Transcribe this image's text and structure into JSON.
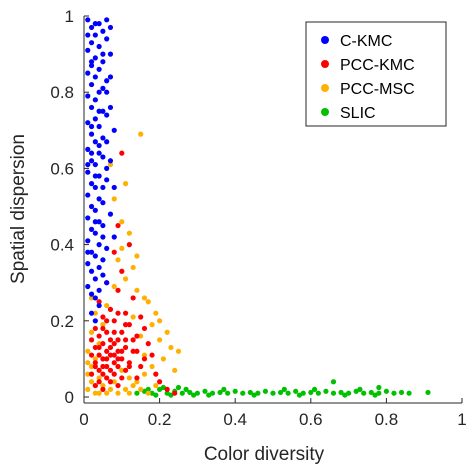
{
  "chart_data": {
    "type": "scatter",
    "title": "",
    "xlabel": "Color diversity",
    "ylabel": "Spatial dispersion",
    "xlim": [
      0,
      1
    ],
    "ylim": [
      0,
      1
    ],
    "xticks": [
      0,
      0.2,
      0.4,
      0.6,
      0.8,
      1
    ],
    "yticks": [
      0,
      0.2,
      0.4,
      0.6,
      0.8,
      1
    ],
    "xtick_labels": [
      "0",
      "0.2",
      "0.4",
      "0.6",
      "0.8",
      "1"
    ],
    "ytick_labels": [
      "0",
      "0.2",
      "0.4",
      "0.6",
      "0.8",
      "1"
    ],
    "grid": false,
    "legend_position": "top-right",
    "series": [
      {
        "name": "C-KMC",
        "color": "#0000ff",
        "points": [
          [
            0.01,
            0.99
          ],
          [
            0.02,
            0.97
          ],
          [
            0.03,
            0.95
          ],
          [
            0.04,
            0.98
          ],
          [
            0.02,
            0.93
          ],
          [
            0.05,
            0.96
          ],
          [
            0.01,
            0.91
          ],
          [
            0.03,
            0.89
          ],
          [
            0.04,
            0.92
          ],
          [
            0.06,
            0.94
          ],
          [
            0.02,
            0.87
          ],
          [
            0.05,
            0.88
          ],
          [
            0.01,
            0.85
          ],
          [
            0.03,
            0.84
          ],
          [
            0.04,
            0.86
          ],
          [
            0.02,
            0.82
          ],
          [
            0.05,
            0.81
          ],
          [
            0.06,
            0.83
          ],
          [
            0.01,
            0.79
          ],
          [
            0.03,
            0.78
          ],
          [
            0.04,
            0.8
          ],
          [
            0.02,
            0.76
          ],
          [
            0.05,
            0.75
          ],
          [
            0.03,
            0.73
          ],
          [
            0.01,
            0.72
          ],
          [
            0.04,
            0.71
          ],
          [
            0.06,
            0.74
          ],
          [
            0.02,
            0.69
          ],
          [
            0.03,
            0.67
          ],
          [
            0.05,
            0.68
          ],
          [
            0.01,
            0.65
          ],
          [
            0.04,
            0.64
          ],
          [
            0.02,
            0.62
          ],
          [
            0.03,
            0.61
          ],
          [
            0.05,
            0.63
          ],
          [
            0.01,
            0.59
          ],
          [
            0.04,
            0.58
          ],
          [
            0.02,
            0.56
          ],
          [
            0.03,
            0.55
          ],
          [
            0.06,
            0.57
          ],
          [
            0.01,
            0.53
          ],
          [
            0.04,
            0.52
          ],
          [
            0.02,
            0.5
          ],
          [
            0.05,
            0.51
          ],
          [
            0.03,
            0.49
          ],
          [
            0.01,
            0.47
          ],
          [
            0.04,
            0.46
          ],
          [
            0.02,
            0.44
          ],
          [
            0.03,
            0.43
          ],
          [
            0.05,
            0.45
          ],
          [
            0.01,
            0.41
          ],
          [
            0.04,
            0.4
          ],
          [
            0.02,
            0.38
          ],
          [
            0.03,
            0.37
          ],
          [
            0.06,
            0.39
          ],
          [
            0.01,
            0.35
          ],
          [
            0.04,
            0.34
          ],
          [
            0.02,
            0.33
          ],
          [
            0.05,
            0.32
          ],
          [
            0.03,
            0.31
          ],
          [
            0.01,
            0.29
          ],
          [
            0.04,
            0.28
          ],
          [
            0.02,
            0.27
          ],
          [
            0.03,
            0.26
          ],
          [
            0.07,
            0.9
          ],
          [
            0.07,
            0.76
          ],
          [
            0.07,
            0.62
          ],
          [
            0.07,
            0.48
          ],
          [
            0.08,
            0.55
          ],
          [
            0.08,
            0.7
          ],
          [
            0.06,
            0.99
          ],
          [
            0.07,
            0.97
          ],
          [
            0.03,
            0.98
          ],
          [
            0.05,
            0.9
          ],
          [
            0.02,
            0.71
          ],
          [
            0.04,
            0.66
          ],
          [
            0.06,
            0.6
          ],
          [
            0.05,
            0.42
          ],
          [
            0.03,
            0.58
          ],
          [
            0.02,
            0.88
          ],
          [
            0.01,
            0.95
          ],
          [
            0.06,
            0.8
          ],
          [
            0.04,
            0.75
          ],
          [
            0.02,
            0.64
          ],
          [
            0.05,
            0.55
          ],
          [
            0.03,
            0.46
          ],
          [
            0.01,
            0.38
          ],
          [
            0.06,
            0.3
          ],
          [
            0.04,
            0.24
          ],
          [
            0.02,
            0.22
          ],
          [
            0.03,
            0.2
          ],
          [
            0.05,
            0.36
          ],
          [
            0.01,
            0.61
          ],
          [
            0.07,
            0.84
          ],
          [
            0.06,
            0.67
          ],
          [
            0.08,
            0.42
          ]
        ]
      },
      {
        "name": "PCC-KMC",
        "color": "#ff0000",
        "points": [
          [
            0.1,
            0.64
          ],
          [
            0.09,
            0.45
          ],
          [
            0.12,
            0.4
          ],
          [
            0.08,
            0.38
          ],
          [
            0.1,
            0.33
          ],
          [
            0.06,
            0.3
          ],
          [
            0.09,
            0.28
          ],
          [
            0.13,
            0.26
          ],
          [
            0.04,
            0.25
          ],
          [
            0.07,
            0.23
          ],
          [
            0.11,
            0.22
          ],
          [
            0.05,
            0.21
          ],
          [
            0.08,
            0.2
          ],
          [
            0.12,
            0.19
          ],
          [
            0.03,
            0.18
          ],
          [
            0.06,
            0.17
          ],
          [
            0.1,
            0.17
          ],
          [
            0.14,
            0.16
          ],
          [
            0.04,
            0.16
          ],
          [
            0.07,
            0.15
          ],
          [
            0.09,
            0.15
          ],
          [
            0.05,
            0.14
          ],
          [
            0.08,
            0.14
          ],
          [
            0.11,
            0.13
          ],
          [
            0.03,
            0.13
          ],
          [
            0.06,
            0.12
          ],
          [
            0.09,
            0.12
          ],
          [
            0.13,
            0.12
          ],
          [
            0.04,
            0.11
          ],
          [
            0.07,
            0.11
          ],
          [
            0.1,
            0.1
          ],
          [
            0.05,
            0.1
          ],
          [
            0.08,
            0.09
          ],
          [
            0.12,
            0.09
          ],
          [
            0.03,
            0.09
          ],
          [
            0.06,
            0.08
          ],
          [
            0.09,
            0.08
          ],
          [
            0.04,
            0.07
          ],
          [
            0.07,
            0.07
          ],
          [
            0.11,
            0.07
          ],
          [
            0.05,
            0.06
          ],
          [
            0.08,
            0.06
          ],
          [
            0.02,
            0.06
          ],
          [
            0.06,
            0.05
          ],
          [
            0.1,
            0.05
          ],
          [
            0.04,
            0.04
          ],
          [
            0.07,
            0.04
          ],
          [
            0.03,
            0.03
          ],
          [
            0.09,
            0.03
          ],
          [
            0.05,
            0.02
          ],
          [
            0.15,
            0.21
          ],
          [
            0.16,
            0.18
          ],
          [
            0.17,
            0.14
          ],
          [
            0.18,
            0.11
          ],
          [
            0.15,
            0.08
          ],
          [
            0.19,
            0.06
          ],
          [
            0.2,
            0.04
          ],
          [
            0.22,
            0.02
          ],
          [
            0.24,
            0.01
          ],
          [
            0.14,
            0.05
          ],
          [
            0.13,
            0.15
          ],
          [
            0.16,
            0.1
          ],
          [
            0.02,
            0.11
          ],
          [
            0.02,
            0.15
          ],
          [
            0.11,
            0.19
          ],
          [
            0.06,
            0.2
          ],
          [
            0.09,
            0.22
          ],
          [
            0.05,
            0.18
          ],
          [
            0.08,
            0.17
          ],
          [
            0.04,
            0.13
          ],
          [
            0.07,
            0.13
          ],
          [
            0.1,
            0.12
          ],
          [
            0.06,
            0.1
          ],
          [
            0.09,
            0.1
          ],
          [
            0.03,
            0.08
          ],
          [
            0.12,
            0.08
          ],
          [
            0.05,
            0.08
          ],
          [
            0.08,
            0.11
          ],
          [
            0.11,
            0.15
          ],
          [
            0.14,
            0.12
          ]
        ]
      },
      {
        "name": "PCC-MSC",
        "color": "#ffb000",
        "points": [
          [
            0.15,
            0.69
          ],
          [
            0.07,
            0.61
          ],
          [
            0.11,
            0.56
          ],
          [
            0.08,
            0.52
          ],
          [
            0.12,
            0.43
          ],
          [
            0.1,
            0.39
          ],
          [
            0.09,
            0.36
          ],
          [
            0.13,
            0.34
          ],
          [
            0.11,
            0.31
          ],
          [
            0.14,
            0.28
          ],
          [
            0.17,
            0.25
          ],
          [
            0.19,
            0.22
          ],
          [
            0.18,
            0.19
          ],
          [
            0.22,
            0.17
          ],
          [
            0.2,
            0.15
          ],
          [
            0.25,
            0.12
          ],
          [
            0.21,
            0.1
          ],
          [
            0.16,
            0.26
          ],
          [
            0.06,
            0.24
          ],
          [
            0.03,
            0.22
          ],
          [
            0.05,
            0.19
          ],
          [
            0.02,
            0.17
          ],
          [
            0.04,
            0.14
          ],
          [
            0.01,
            0.12
          ],
          [
            0.03,
            0.1
          ],
          [
            0.02,
            0.08
          ],
          [
            0.01,
            0.06
          ],
          [
            0.04,
            0.05
          ],
          [
            0.02,
            0.04
          ],
          [
            0.03,
            0.03
          ],
          [
            0.05,
            0.03
          ],
          [
            0.01,
            0.02
          ],
          [
            0.07,
            0.02
          ],
          [
            0.09,
            0.01
          ],
          [
            0.11,
            0.02
          ],
          [
            0.13,
            0.03
          ],
          [
            0.15,
            0.02
          ],
          [
            0.17,
            0.01
          ],
          [
            0.04,
            0.01
          ],
          [
            0.06,
            0.01
          ],
          [
            0.1,
            0.07
          ],
          [
            0.12,
            0.05
          ],
          [
            0.14,
            0.04
          ],
          [
            0.16,
            0.06
          ],
          [
            0.18,
            0.08
          ],
          [
            0.23,
            0.13
          ],
          [
            0.2,
            0.2
          ],
          [
            0.15,
            0.16
          ],
          [
            0.13,
            0.21
          ],
          [
            0.08,
            0.29
          ],
          [
            0.1,
            0.46
          ],
          [
            0.14,
            0.37
          ],
          [
            0.16,
            0.11
          ],
          [
            0.02,
            0.26
          ],
          [
            0.01,
            0.09
          ],
          [
            0.03,
            0.01
          ],
          [
            0.08,
            0.04
          ],
          [
            0.12,
            0.01
          ],
          [
            0.19,
            0.03
          ],
          [
            0.24,
            0.07
          ]
        ]
      },
      {
        "name": "SLIC",
        "color": "#00c000",
        "points": [
          [
            0.14,
            0.01
          ],
          [
            0.16,
            0.015
          ],
          [
            0.18,
            0.01
          ],
          [
            0.2,
            0.02
          ],
          [
            0.22,
            0.01
          ],
          [
            0.24,
            0.015
          ],
          [
            0.26,
            0.01
          ],
          [
            0.28,
            0.012
          ],
          [
            0.3,
            0.01
          ],
          [
            0.32,
            0.015
          ],
          [
            0.34,
            0.01
          ],
          [
            0.36,
            0.012
          ],
          [
            0.38,
            0.01
          ],
          [
            0.4,
            0.015
          ],
          [
            0.42,
            0.01
          ],
          [
            0.44,
            0.012
          ],
          [
            0.46,
            0.01
          ],
          [
            0.48,
            0.015
          ],
          [
            0.5,
            0.01
          ],
          [
            0.52,
            0.012
          ],
          [
            0.54,
            0.01
          ],
          [
            0.56,
            0.015
          ],
          [
            0.58,
            0.01
          ],
          [
            0.6,
            0.012
          ],
          [
            0.62,
            0.01
          ],
          [
            0.64,
            0.015
          ],
          [
            0.66,
            0.01
          ],
          [
            0.68,
            0.012
          ],
          [
            0.7,
            0.01
          ],
          [
            0.72,
            0.015
          ],
          [
            0.74,
            0.01
          ],
          [
            0.76,
            0.012
          ],
          [
            0.78,
            0.01
          ],
          [
            0.8,
            0.015
          ],
          [
            0.82,
            0.01
          ],
          [
            0.84,
            0.012
          ],
          [
            0.86,
            0.01
          ],
          [
            0.91,
            0.012
          ],
          [
            0.66,
            0.04
          ],
          [
            0.78,
            0.025
          ],
          [
            0.21,
            0.025
          ],
          [
            0.23,
            0.005
          ],
          [
            0.27,
            0.02
          ],
          [
            0.33,
            0.005
          ],
          [
            0.37,
            0.02
          ],
          [
            0.45,
            0.005
          ],
          [
            0.53,
            0.02
          ],
          [
            0.57,
            0.005
          ],
          [
            0.61,
            0.02
          ],
          [
            0.69,
            0.005
          ],
          [
            0.73,
            0.02
          ],
          [
            0.77,
            0.005
          ],
          [
            0.17,
            0.02
          ],
          [
            0.19,
            0.005
          ],
          [
            0.25,
            0.025
          ],
          [
            0.29,
            0.005
          ]
        ]
      }
    ]
  }
}
